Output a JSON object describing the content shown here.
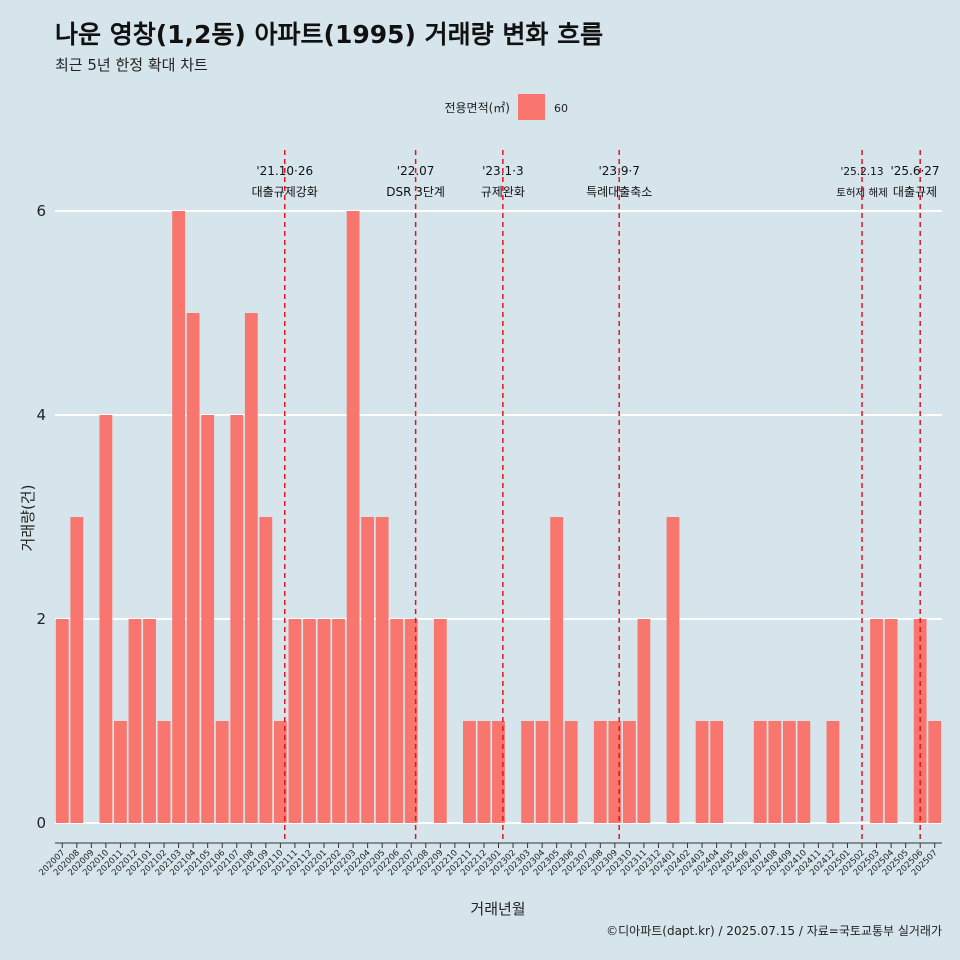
{
  "title": "나운 영창(1,2동) 아파트(1995) 거래량 변화 흐름",
  "subtitle": "최근 5년 한정 확대 차트",
  "caption": "©디아파트(dapt.kr) / 2025.07.15 / 자료=국토교통부 실거래가",
  "legend": {
    "title": "전용면적(㎡)",
    "items": [
      {
        "label": "60",
        "color": "#f8766d"
      }
    ]
  },
  "colors": {
    "bar": "#f8766d",
    "annotation_line": "#e8131b",
    "grid": "#ffffff"
  },
  "chart_data": {
    "type": "bar",
    "xlabel": "거래년월",
    "ylabel": "거래량(건)",
    "ylim": [
      0,
      6.3
    ],
    "yticks": [
      0,
      2,
      4,
      6
    ],
    "grid": true,
    "legend_position": "top",
    "categories": [
      "202007",
      "202008",
      "202009",
      "202010",
      "202011",
      "202012",
      "202101",
      "202102",
      "202103",
      "202104",
      "202105",
      "202106",
      "202107",
      "202108",
      "202109",
      "202110",
      "202111",
      "202112",
      "202201",
      "202202",
      "202203",
      "202204",
      "202205",
      "202206",
      "202207",
      "202208",
      "202209",
      "202210",
      "202211",
      "202212",
      "202301",
      "202302",
      "202303",
      "202304",
      "202305",
      "202306",
      "202307",
      "202308",
      "202309",
      "202310",
      "202311",
      "202312",
      "202401",
      "202402",
      "202403",
      "202404",
      "202405",
      "202406",
      "202407",
      "202408",
      "202409",
      "202410",
      "202411",
      "202412",
      "202501",
      "202502",
      "202503",
      "202504",
      "202505",
      "202506",
      "202507"
    ],
    "series": [
      {
        "name": "60",
        "values": [
          2,
          3,
          0,
          4,
          1,
          2,
          2,
          1,
          6,
          5,
          4,
          1,
          4,
          5,
          3,
          1,
          2,
          2,
          2,
          2,
          6,
          3,
          3,
          2,
          2,
          0,
          2,
          0,
          1,
          1,
          1,
          0,
          1,
          1,
          3,
          1,
          0,
          1,
          1,
          1,
          2,
          0,
          3,
          0,
          1,
          1,
          0,
          0,
          1,
          1,
          1,
          1,
          0,
          1,
          0,
          0,
          2,
          2,
          0,
          2,
          1
        ]
      }
    ],
    "annotations": [
      {
        "date": "'21.10·26",
        "label": "대출규제강화",
        "position": 15.3
      },
      {
        "date": "'22.07",
        "label": "DSR 3단계",
        "position": 24.3
      },
      {
        "date": "'23.1·3",
        "label": "규제완화",
        "position": 30.3
      },
      {
        "date": "'23.9·7",
        "label": "특례대출축소",
        "position": 38.3
      },
      {
        "date": "'25.2.13",
        "label": "토허제 해제",
        "position": 55.0
      },
      {
        "date": "'25.6·27",
        "label": "대출규제",
        "position": 59.0
      }
    ]
  }
}
